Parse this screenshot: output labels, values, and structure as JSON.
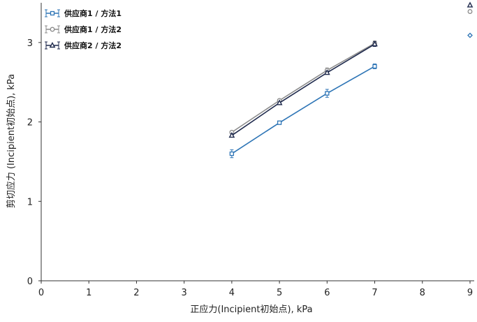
{
  "chart_data": {
    "type": "line",
    "xlabel": "正应力(Incipient初始点), kPa",
    "ylabel": "剪切应力 (Incipient初始点), kPa",
    "xlim": [
      0,
      9
    ],
    "ylim": [
      0,
      3.5
    ],
    "x_ticks": [
      "0",
      "1",
      "2",
      "3",
      "4",
      "5",
      "6",
      "7",
      "8",
      "9"
    ],
    "y_ticks": [
      "0",
      "1",
      "2",
      "3"
    ],
    "grid": false,
    "legend_position": "top-left",
    "series": [
      {
        "name": "供应商1 / 方法1",
        "color": "#2e75b6",
        "marker": "square",
        "x": [
          4,
          5,
          6,
          7
        ],
        "y": [
          1.6,
          1.99,
          2.36,
          2.7
        ],
        "error": [
          0.05,
          0.01,
          0.05,
          0.03
        ],
        "outlier": {
          "x": 9,
          "y": 3.09,
          "marker": "diamond"
        }
      },
      {
        "name": "供应商1 / 方法2",
        "color": "#8c8c8c",
        "marker": "circle",
        "x": [
          4,
          5,
          6,
          7
        ],
        "y": [
          1.87,
          2.27,
          2.65,
          2.99
        ],
        "error": [
          0.01,
          0.01,
          0.03,
          0.03
        ],
        "outlier": {
          "x": 9,
          "y": 3.39,
          "marker": "circle"
        }
      },
      {
        "name": "供应商2 / 方法2",
        "color": "#1f2a4d",
        "marker": "triangle",
        "x": [
          4,
          5,
          6,
          7
        ],
        "y": [
          1.83,
          2.24,
          2.62,
          2.98
        ],
        "error": [
          0.02,
          0.01,
          0.02,
          0.03
        ],
        "outlier": {
          "x": 9,
          "y": 3.47,
          "marker": "triangle"
        }
      }
    ]
  }
}
